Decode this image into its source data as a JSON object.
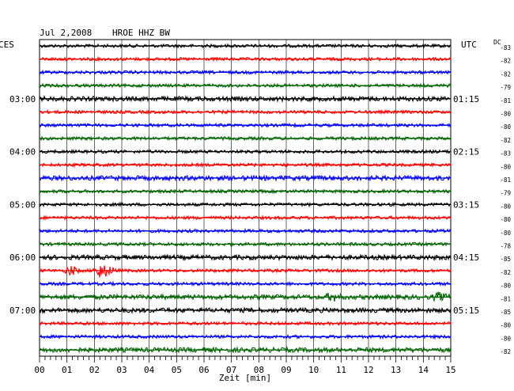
{
  "header": {
    "date": "Jul 2,2008",
    "station": "HROE HHZ BW"
  },
  "left_axis_label": "CES",
  "right_axis_label": "UTC",
  "dc_label": "DC",
  "colors": {
    "trace_cycle": [
      "#000000",
      "#ff0000",
      "#0000ff",
      "#006400"
    ],
    "grid": "#000000",
    "background": "#ffffff"
  },
  "chart_data": {
    "type": "line",
    "title": "",
    "xlabel": "Zeit [min]",
    "xlim": [
      0,
      15
    ],
    "x_ticks": [
      "00",
      "01",
      "02",
      "03",
      "04",
      "05",
      "06",
      "07",
      "08",
      "09",
      "10",
      "11",
      "12",
      "13",
      "14",
      "15"
    ],
    "grid": true,
    "left_time_labels": [
      {
        "row": 4,
        "label": "03:00"
      },
      {
        "row": 8,
        "label": "04:00"
      },
      {
        "row": 12,
        "label": "05:00"
      },
      {
        "row": 16,
        "label": "06:00"
      },
      {
        "row": 20,
        "label": "07:00"
      }
    ],
    "right_time_labels": [
      {
        "row": 4,
        "label": "01:15"
      },
      {
        "row": 8,
        "label": "02:15"
      },
      {
        "row": 12,
        "label": "03:15"
      },
      {
        "row": 16,
        "label": "04:15"
      },
      {
        "row": 20,
        "label": "05:15"
      }
    ],
    "dc_offsets": [
      "-83",
      "-82",
      "-82",
      "-79",
      "-81",
      "-80",
      "-80",
      "-82",
      "-83",
      "-80",
      "-81",
      "-79",
      "-80",
      "-80",
      "-80",
      "-78",
      "-85",
      "-82",
      "-80",
      "-81",
      "-85",
      "-80",
      "-80",
      "-82"
    ],
    "trace_amplitude": [
      2,
      2,
      2,
      2,
      3,
      2,
      2,
      2,
      2,
      2,
      3,
      2,
      2,
      2,
      2,
      2,
      3,
      2,
      2,
      3,
      3,
      2,
      2,
      3
    ],
    "events": [
      {
        "row": 17,
        "start_min": 0.9,
        "end_min": 1.5,
        "amplitude": 6
      },
      {
        "row": 17,
        "start_min": 1.9,
        "end_min": 2.9,
        "amplitude": 8
      },
      {
        "row": 19,
        "start_min": 10.4,
        "end_min": 11.2,
        "amplitude": 4
      },
      {
        "row": 19,
        "start_min": 14.3,
        "end_min": 15.0,
        "amplitude": 4
      }
    ]
  }
}
